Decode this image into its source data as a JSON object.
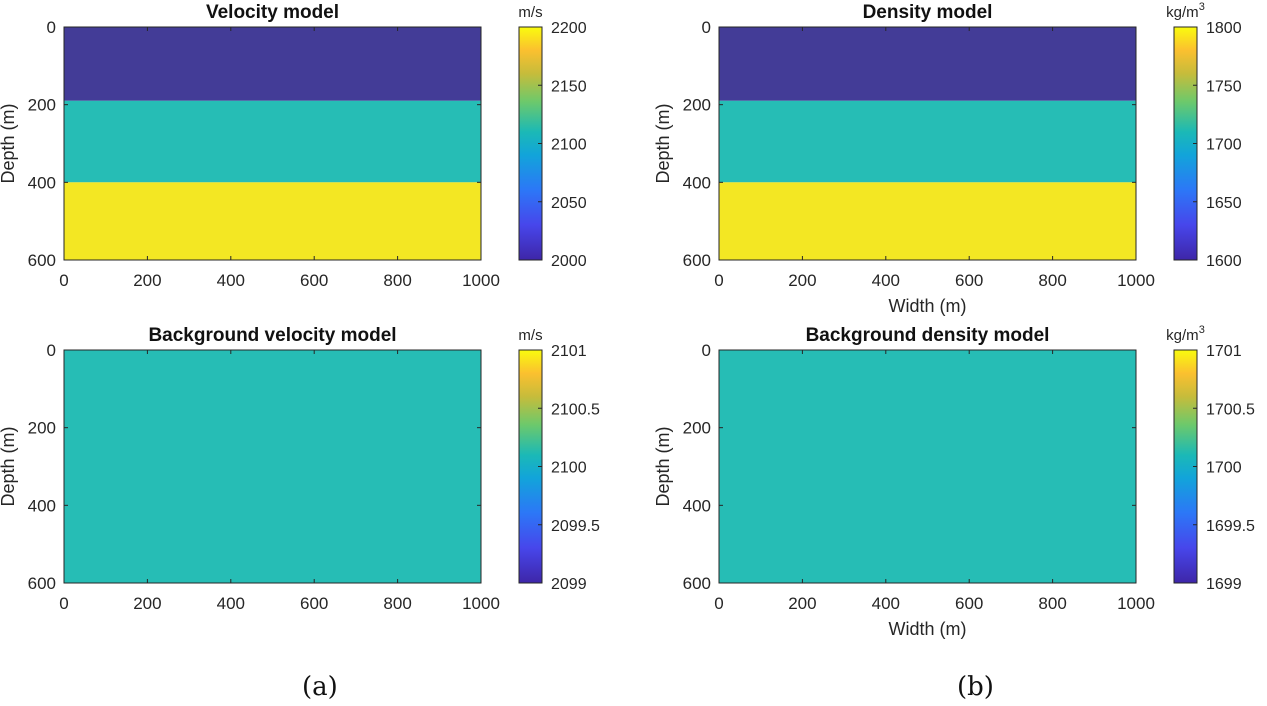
{
  "panel_labels": [
    "(a)",
    "(b)"
  ],
  "colors": {
    "layer_low": "#433C97",
    "layer_mid": "#26BDB5",
    "layer_high": "#F3E723",
    "axis": "#262626",
    "tick_text": "#262626"
  },
  "chart_data": [
    {
      "type": "heatmap",
      "title": "Velocity model",
      "xlabel": "",
      "ylabel": "Depth (m)",
      "xlim": [
        0,
        1000
      ],
      "ylim": [
        0,
        600
      ],
      "xticks": [
        0,
        200,
        400,
        600,
        800,
        1000
      ],
      "yticks": [
        0,
        200,
        400,
        600
      ],
      "layers": [
        {
          "depth_from": 0,
          "depth_to": 190,
          "value": 2000
        },
        {
          "depth_from": 190,
          "depth_to": 400,
          "value": 2100
        },
        {
          "depth_from": 400,
          "depth_to": 600,
          "value": 2200
        }
      ],
      "colorbar": {
        "unit": "m/s",
        "unit_sup": "",
        "clim": [
          2000,
          2200
        ],
        "ticks": [
          2000,
          2050,
          2100,
          2150,
          2200
        ],
        "tick_labels": [
          "2000",
          "2050",
          "2100",
          "2150",
          "2200"
        ]
      }
    },
    {
      "type": "heatmap",
      "title": "Density model",
      "xlabel": "Width (m)",
      "ylabel": "Depth (m)",
      "xlim": [
        0,
        1000
      ],
      "ylim": [
        0,
        600
      ],
      "xticks": [
        0,
        200,
        400,
        600,
        800,
        1000
      ],
      "yticks": [
        0,
        200,
        400,
        600
      ],
      "layers": [
        {
          "depth_from": 0,
          "depth_to": 190,
          "value": 1600
        },
        {
          "depth_from": 190,
          "depth_to": 400,
          "value": 1700
        },
        {
          "depth_from": 400,
          "depth_to": 600,
          "value": 1800
        }
      ],
      "colorbar": {
        "unit": "kg/m",
        "unit_sup": "3",
        "clim": [
          1600,
          1800
        ],
        "ticks": [
          1600,
          1650,
          1700,
          1750,
          1800
        ],
        "tick_labels": [
          "1600",
          "1650",
          "1700",
          "1750",
          "1800"
        ]
      }
    },
    {
      "type": "heatmap",
      "title": "Background velocity model",
      "xlabel": "",
      "ylabel": "Depth (m)",
      "xlim": [
        0,
        1000
      ],
      "ylim": [
        0,
        600
      ],
      "xticks": [
        0,
        200,
        400,
        600,
        800,
        1000
      ],
      "yticks": [
        0,
        200,
        400,
        600
      ],
      "layers": [
        {
          "depth_from": 0,
          "depth_to": 600,
          "value": 2100
        }
      ],
      "colorbar": {
        "unit": "m/s",
        "unit_sup": "",
        "clim": [
          2099,
          2101
        ],
        "ticks": [
          2099,
          2099.5,
          2100,
          2100.5,
          2101
        ],
        "tick_labels": [
          "2099",
          "2099.5",
          "2100",
          "2100.5",
          "2101"
        ]
      }
    },
    {
      "type": "heatmap",
      "title": "Background density model",
      "xlabel": "Width (m)",
      "ylabel": "Depth (m)",
      "xlim": [
        0,
        1000
      ],
      "ylim": [
        0,
        600
      ],
      "xticks": [
        0,
        200,
        400,
        600,
        800,
        1000
      ],
      "yticks": [
        0,
        200,
        400,
        600
      ],
      "layers": [
        {
          "depth_from": 0,
          "depth_to": 600,
          "value": 1700
        }
      ],
      "colorbar": {
        "unit": "kg/m",
        "unit_sup": "3",
        "clim": [
          1699,
          1701
        ],
        "ticks": [
          1699,
          1699.5,
          1700,
          1700.5,
          1701
        ],
        "tick_labels": [
          "1699",
          "1699.5",
          "1700",
          "1700.5",
          "1701"
        ]
      }
    }
  ]
}
